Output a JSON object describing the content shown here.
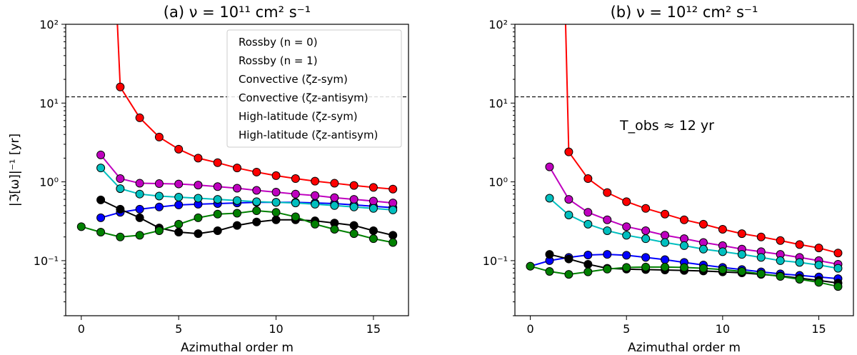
{
  "chart_data": [
    {
      "type": "line",
      "title": "(a) ν = 10¹¹ cm² s⁻¹",
      "xlabel": "Azimuthal order m",
      "ylabel": "|ℑ[ω]|⁻¹ [yr]",
      "yscale": "log",
      "xlim": [
        -0.8,
        16.8
      ],
      "ylim": [
        0.02,
        100
      ],
      "x_ticks": [
        0,
        5,
        10,
        15
      ],
      "y_ticks": [
        {
          "value": 0.1,
          "label": "10⁻¹"
        },
        {
          "value": 1,
          "label": "10⁰"
        },
        {
          "value": 10,
          "label": "10¹"
        },
        {
          "value": 100,
          "label": "10²"
        }
      ],
      "reference_line": {
        "y": 12,
        "style": "dashed"
      },
      "annotation": null,
      "legend": {
        "placement": "top-right",
        "entries": [
          {
            "label": "Rossby (n = 0)",
            "color": "#ff0000"
          },
          {
            "label": "Rossby (n = 1)",
            "color": "#0000ff"
          },
          {
            "label": "Convective (ζz-sym)",
            "color": "#000000"
          },
          {
            "label": "Convective (ζz-antisym)",
            "color": "#008000"
          },
          {
            "label": "High-latitude (ζz-sym)",
            "color": "#bf00bf"
          },
          {
            "label": "High-latitude (ζz-antisym)",
            "color": "#00bfbf"
          }
        ]
      },
      "series": [
        {
          "name": "Rossby (n = 0)",
          "color": "#ff0000",
          "line_to": 160,
          "x": [
            2,
            3,
            4,
            5,
            6,
            7,
            8,
            9,
            10,
            11,
            12,
            13,
            14,
            15,
            16
          ],
          "values": [
            16,
            6.5,
            3.7,
            2.6,
            2.0,
            1.75,
            1.5,
            1.33,
            1.2,
            1.1,
            1.02,
            0.96,
            0.9,
            0.85,
            0.81
          ]
        },
        {
          "name": "Rossby (n = 1)",
          "color": "#0000ff",
          "x": [
            1,
            2,
            3,
            4,
            5,
            6,
            7,
            8,
            9,
            10,
            11,
            12,
            13,
            14,
            15,
            16
          ],
          "values": [
            0.35,
            0.41,
            0.45,
            0.48,
            0.51,
            0.52,
            0.53,
            0.54,
            0.55,
            0.55,
            0.55,
            0.54,
            0.53,
            0.51,
            0.49,
            0.47
          ]
        },
        {
          "name": "Convective (ζz-sym)",
          "color": "#000000",
          "x": [
            1,
            2,
            3,
            4,
            5,
            6,
            7,
            8,
            9,
            10,
            11,
            12,
            13,
            14,
            15,
            16
          ],
          "values": [
            0.59,
            0.45,
            0.35,
            0.26,
            0.23,
            0.22,
            0.24,
            0.28,
            0.31,
            0.33,
            0.33,
            0.32,
            0.3,
            0.28,
            0.24,
            0.21
          ]
        },
        {
          "name": "Convective (ζz-antisym)",
          "color": "#008000",
          "x": [
            0,
            1,
            2,
            3,
            4,
            5,
            6,
            7,
            8,
            9,
            10,
            11,
            12,
            13,
            14,
            15,
            16
          ],
          "values": [
            0.27,
            0.23,
            0.2,
            0.21,
            0.24,
            0.29,
            0.35,
            0.39,
            0.4,
            0.43,
            0.41,
            0.36,
            0.29,
            0.25,
            0.22,
            0.19,
            0.17
          ]
        },
        {
          "name": "High-latitude (ζz-sym)",
          "color": "#bf00bf",
          "x": [
            1,
            2,
            3,
            4,
            5,
            6,
            7,
            8,
            9,
            10,
            11,
            12,
            13,
            14,
            15,
            16
          ],
          "values": [
            2.2,
            1.1,
            0.96,
            0.95,
            0.94,
            0.91,
            0.87,
            0.83,
            0.78,
            0.74,
            0.7,
            0.67,
            0.63,
            0.6,
            0.57,
            0.54
          ]
        },
        {
          "name": "High-latitude (ζz-antisym)",
          "color": "#00bfbf",
          "x": [
            1,
            2,
            3,
            4,
            5,
            6,
            7,
            8,
            9,
            10,
            11,
            12,
            13,
            14,
            15,
            16
          ],
          "values": [
            1.5,
            0.82,
            0.7,
            0.66,
            0.64,
            0.62,
            0.6,
            0.58,
            0.56,
            0.55,
            0.54,
            0.52,
            0.5,
            0.48,
            0.46,
            0.44
          ]
        }
      ]
    },
    {
      "type": "line",
      "title": "(b) ν = 10¹² cm² s⁻¹",
      "xlabel": "Azimuthal order m",
      "ylabel": "",
      "yscale": "log",
      "xlim": [
        -0.8,
        16.8
      ],
      "ylim": [
        0.02,
        100
      ],
      "x_ticks": [
        0,
        5,
        10,
        15
      ],
      "y_ticks": [
        {
          "value": 0.1,
          "label": "10⁻¹"
        },
        {
          "value": 1,
          "label": "10⁰"
        },
        {
          "value": 10,
          "label": "10¹"
        },
        {
          "value": 100,
          "label": "10²"
        }
      ],
      "reference_line": {
        "y": 12,
        "style": "dashed"
      },
      "annotation": "T_obs ≈ 12 yr",
      "legend": null,
      "series": [
        {
          "name": "Rossby (n = 0)",
          "color": "#ff0000",
          "line_to": 160,
          "x": [
            2,
            3,
            4,
            5,
            6,
            7,
            8,
            9,
            10,
            11,
            12,
            13,
            14,
            15,
            16
          ],
          "values": [
            2.4,
            1.1,
            0.73,
            0.56,
            0.46,
            0.39,
            0.33,
            0.29,
            0.25,
            0.22,
            0.2,
            0.18,
            0.16,
            0.145,
            0.125
          ]
        },
        {
          "name": "Rossby (n = 1)",
          "color": "#0000ff",
          "x": [
            0,
            1,
            2,
            3,
            4,
            5,
            6,
            7,
            8,
            9,
            10,
            11,
            12,
            13,
            14,
            15,
            16
          ],
          "values": [
            0.085,
            0.1,
            0.11,
            0.118,
            0.12,
            0.117,
            0.11,
            0.103,
            0.095,
            0.088,
            0.082,
            0.077,
            0.072,
            0.068,
            0.065,
            0.062,
            0.059
          ]
        },
        {
          "name": "Convective (ζz-sym)",
          "color": "#000000",
          "x": [
            1,
            2,
            3,
            4,
            5,
            6,
            7,
            8,
            9,
            10,
            11,
            12,
            13,
            14,
            15,
            16
          ],
          "values": [
            0.12,
            0.105,
            0.09,
            0.08,
            0.078,
            0.077,
            0.076,
            0.075,
            0.074,
            0.072,
            0.07,
            0.067,
            0.064,
            0.06,
            0.056,
            0.052
          ]
        },
        {
          "name": "Convective (ζz-antisym)",
          "color": "#008000",
          "x": [
            0,
            1,
            2,
            3,
            4,
            5,
            6,
            7,
            8,
            9,
            10,
            11,
            12,
            13,
            14,
            15,
            16
          ],
          "values": [
            0.085,
            0.073,
            0.067,
            0.072,
            0.078,
            0.082,
            0.083,
            0.083,
            0.082,
            0.08,
            0.077,
            0.073,
            0.068,
            0.063,
            0.058,
            0.053,
            0.047
          ]
        },
        {
          "name": "High-latitude (ζz-sym)",
          "color": "#bf00bf",
          "x": [
            1,
            2,
            3,
            4,
            5,
            6,
            7,
            8,
            9,
            10,
            11,
            12,
            13,
            14,
            15,
            16
          ],
          "values": [
            1.55,
            0.6,
            0.41,
            0.33,
            0.27,
            0.24,
            0.21,
            0.19,
            0.17,
            0.155,
            0.14,
            0.13,
            0.12,
            0.11,
            0.1,
            0.09
          ]
        },
        {
          "name": "High-latitude (ζz-antisym)",
          "color": "#00bfbf",
          "x": [
            1,
            2,
            3,
            4,
            5,
            6,
            7,
            8,
            9,
            10,
            11,
            12,
            13,
            14,
            15,
            16
          ],
          "values": [
            0.62,
            0.38,
            0.29,
            0.24,
            0.21,
            0.19,
            0.17,
            0.155,
            0.14,
            0.13,
            0.12,
            0.11,
            0.1,
            0.095,
            0.088,
            0.08
          ]
        }
      ]
    }
  ]
}
